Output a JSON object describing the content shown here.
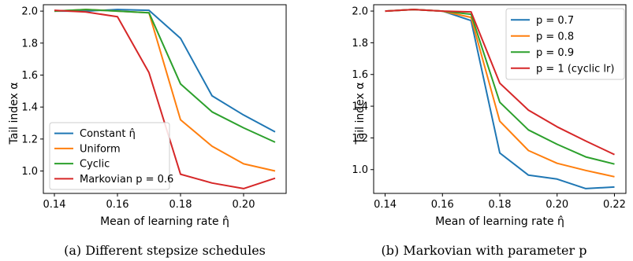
{
  "chart_data": [
    {
      "type": "line",
      "x": [
        0.14,
        0.15,
        0.16,
        0.17,
        0.18,
        0.19,
        0.2,
        0.21
      ],
      "series": [
        {
          "name": "Constant η̂",
          "color": "#1f77b4",
          "values": [
            2.0,
            2.0,
            2.01,
            2.005,
            1.83,
            1.47,
            1.35,
            1.245
          ]
        },
        {
          "name": "Uniform",
          "color": "#ff7f0e",
          "values": [
            2.0,
            2.01,
            2.0,
            1.99,
            1.32,
            1.155,
            1.045,
            1.0
          ]
        },
        {
          "name": "Cyclic",
          "color": "#2ca02c",
          "values": [
            2.0,
            2.01,
            2.0,
            1.99,
            1.545,
            1.37,
            1.27,
            1.18
          ]
        },
        {
          "name": "Markovian p = 0.6",
          "color": "#d62728",
          "values": [
            2.005,
            1.995,
            1.965,
            1.615,
            0.98,
            0.925,
            0.89,
            0.955
          ]
        }
      ],
      "xlabel": "Mean of learning rate η̂",
      "ylabel": "Tail index α",
      "xlim": [
        0.1365,
        0.2135
      ],
      "ylim": [
        0.86,
        2.04
      ],
      "xticks": [
        0.14,
        0.16,
        0.18,
        0.2
      ],
      "xtick_labels": [
        "0.14",
        "0.16",
        "0.18",
        "0.20"
      ],
      "yticks": [
        1.0,
        1.2,
        1.4,
        1.6,
        1.8,
        2.0
      ],
      "ytick_labels": [
        "1.0",
        "1.2",
        "1.4",
        "1.6",
        "1.8",
        "2.0"
      ],
      "legend_position": "bottom-left",
      "grid": false,
      "caption": "(a) Different stepsize schedules"
    },
    {
      "type": "line",
      "x": [
        0.14,
        0.15,
        0.16,
        0.17,
        0.18,
        0.19,
        0.2,
        0.21,
        0.22
      ],
      "series": [
        {
          "name": "p = 0.7",
          "color": "#1f77b4",
          "values": [
            2.0,
            2.01,
            2.0,
            1.94,
            1.105,
            0.965,
            0.94,
            0.88,
            0.89
          ]
        },
        {
          "name": "p = 0.8",
          "color": "#ff7f0e",
          "values": [
            2.0,
            2.01,
            2.0,
            1.96,
            1.305,
            1.12,
            1.04,
            0.995,
            0.955
          ]
        },
        {
          "name": "p = 0.9",
          "color": "#2ca02c",
          "values": [
            2.0,
            2.01,
            2.0,
            1.98,
            1.425,
            1.25,
            1.16,
            1.08,
            1.035
          ]
        },
        {
          "name": "p = 1 (cyclic lr)",
          "color": "#d62728",
          "values": [
            2.0,
            2.01,
            2.0,
            1.995,
            1.545,
            1.375,
            1.27,
            1.18,
            1.095
          ]
        }
      ],
      "xlabel": "Mean of learning rate η̂",
      "ylabel": "Tail index α",
      "xlim": [
        0.136,
        0.224
      ],
      "ylim": [
        0.85,
        2.04
      ],
      "xticks": [
        0.14,
        0.16,
        0.18,
        0.2,
        0.22
      ],
      "xtick_labels": [
        "0.14",
        "0.16",
        "0.18",
        "0.20",
        "0.22"
      ],
      "yticks": [
        1.0,
        1.2,
        1.4,
        1.6,
        1.8,
        2.0
      ],
      "ytick_labels": [
        "1.0",
        "1.2",
        "1.4",
        "1.6",
        "1.8",
        "2.0"
      ],
      "legend_position": "top-right",
      "grid": false,
      "caption": "(b) Markovian with parameter p"
    }
  ]
}
